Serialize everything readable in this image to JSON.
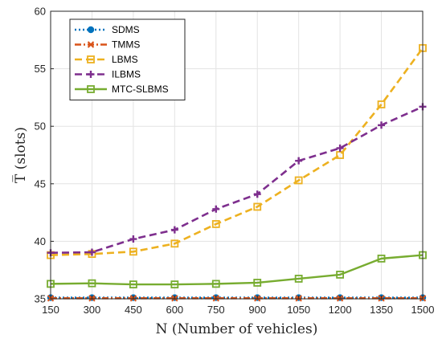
{
  "chart_data": {
    "type": "line",
    "xlabel": "N (Number of vehicles)",
    "ylabel": "T̅ (slots)",
    "x": [
      150,
      300,
      450,
      600,
      750,
      900,
      1050,
      1200,
      1350,
      1500
    ],
    "xlim": [
      150,
      1500
    ],
    "ylim": [
      35,
      60
    ],
    "yticks": [
      35,
      40,
      45,
      50,
      55,
      60
    ],
    "grid": true,
    "legend_position": "top-left",
    "series": [
      {
        "name": "SDMS",
        "color": "#0072BD",
        "linestyle": "dotted",
        "marker": "circle",
        "values": [
          35.1,
          35.1,
          35.1,
          35.1,
          35.1,
          35.1,
          35.1,
          35.1,
          35.1,
          35.1
        ]
      },
      {
        "name": "TMMS",
        "color": "#D95319",
        "linestyle": "dashdot",
        "marker": "x",
        "values": [
          35.05,
          35.05,
          35.05,
          35.05,
          35.05,
          35.05,
          35.05,
          35.05,
          35.05,
          35.05
        ]
      },
      {
        "name": "LBMS",
        "color": "#EDB120",
        "linestyle": "dashed",
        "marker": "square",
        "values": [
          38.8,
          38.9,
          39.1,
          39.8,
          41.5,
          43.0,
          45.3,
          47.5,
          51.9,
          56.8
        ]
      },
      {
        "name": "ILBMS",
        "color": "#7E2F8E",
        "linestyle": "dashed",
        "marker": "plus",
        "values": [
          39.0,
          39.05,
          40.2,
          41.0,
          42.8,
          44.1,
          47.0,
          48.1,
          50.1,
          51.7
        ]
      },
      {
        "name": "MTC-SLBMS",
        "color": "#77AC30",
        "linestyle": "solid",
        "marker": "square",
        "values": [
          36.3,
          36.35,
          36.25,
          36.25,
          36.3,
          36.4,
          36.75,
          37.1,
          38.5,
          38.8
        ]
      }
    ]
  }
}
